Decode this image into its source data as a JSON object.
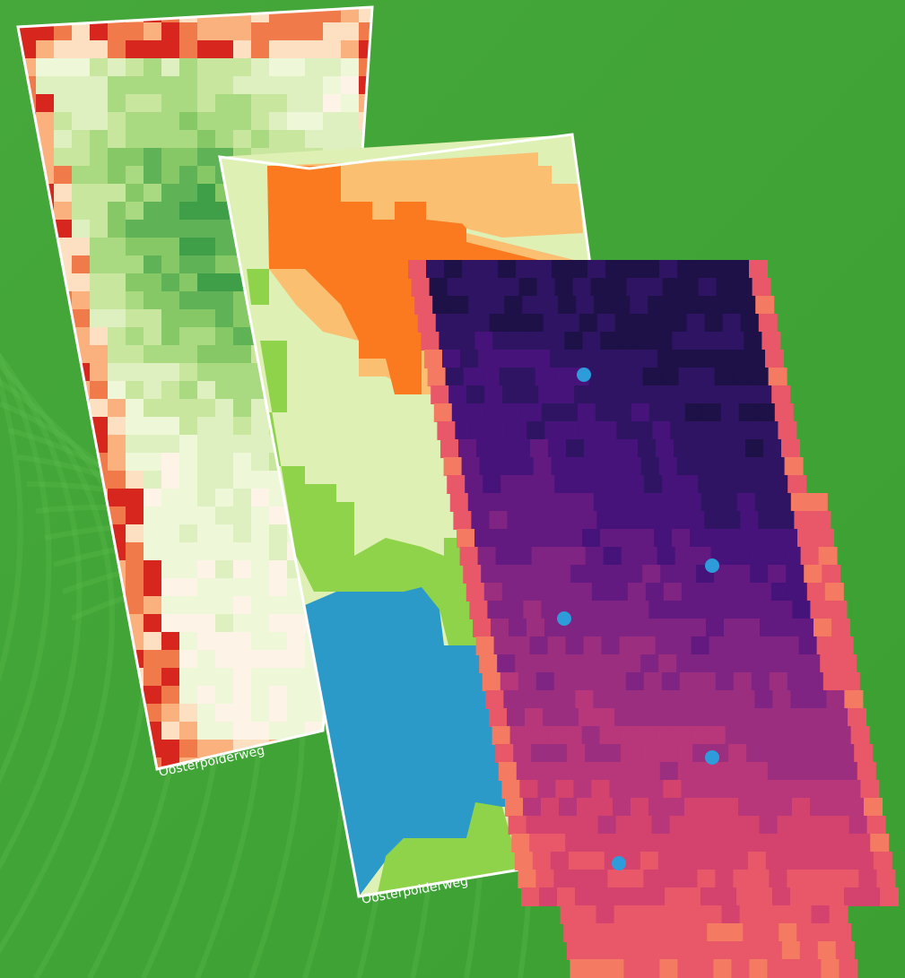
{
  "labels": {
    "field_1_road": "Oosterpolderweg",
    "field_2_road": "Oosterpolderweg"
  }
}
